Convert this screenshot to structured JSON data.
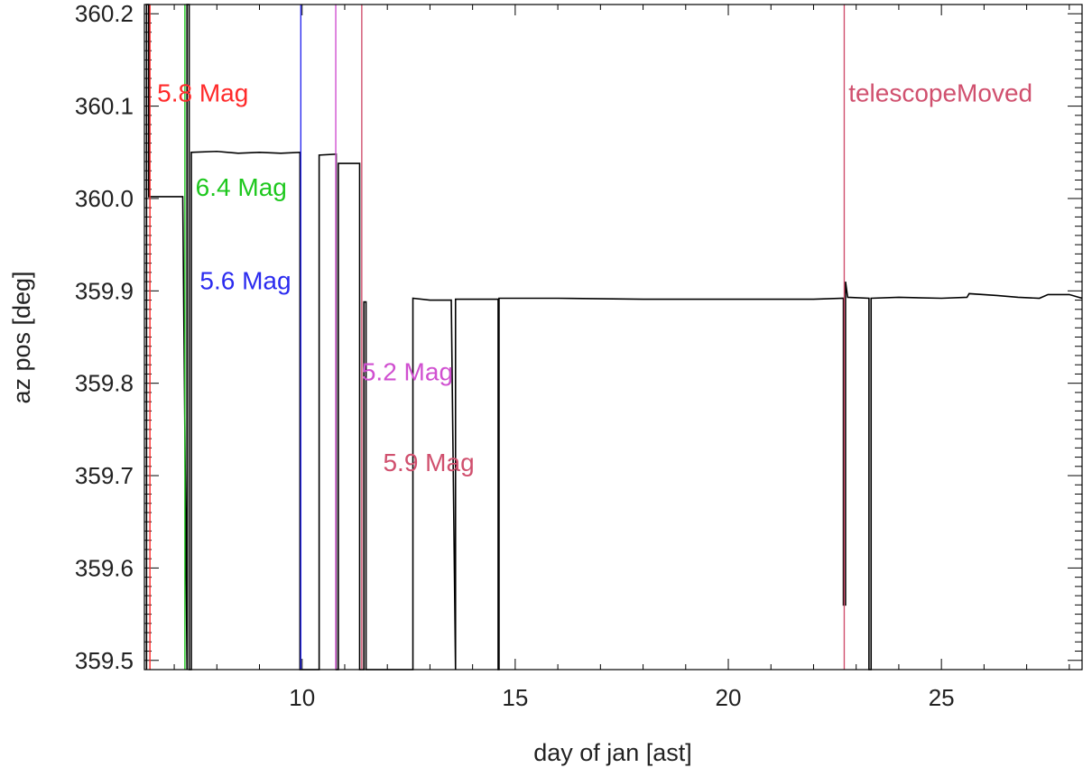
{
  "chart_data": {
    "type": "line",
    "title": "",
    "xlabel": "day of jan [ast]",
    "ylabel": "az pos [deg]",
    "xlim": [
      6.3,
      28.3
    ],
    "ylim": [
      359.49,
      360.21
    ],
    "xticks": [
      {
        "value": 10,
        "label": "10"
      },
      {
        "value": 15,
        "label": "15"
      },
      {
        "value": 20,
        "label": "20"
      },
      {
        "value": 25,
        "label": "25"
      }
    ],
    "yticks": [
      {
        "value": 359.5,
        "label": "359.5"
      },
      {
        "value": 359.6,
        "label": "359.6"
      },
      {
        "value": 359.7,
        "label": "359.7"
      },
      {
        "value": 359.8,
        "label": "359.8"
      },
      {
        "value": 359.9,
        "label": "359.9"
      },
      {
        "value": 360.0,
        "label": "360.0"
      },
      {
        "value": 360.1,
        "label": "360.1"
      },
      {
        "value": 360.2,
        "label": "360.2"
      }
    ],
    "grid": false,
    "series": [
      {
        "color": "#000000",
        "points": [
          [
            6.35,
            359.49
          ],
          [
            6.35,
            360.21
          ],
          [
            6.4,
            360.21
          ],
          [
            6.4,
            360.002
          ],
          [
            7.2,
            360.002
          ],
          [
            7.3,
            359.49
          ],
          [
            7.3,
            360.21
          ],
          [
            7.35,
            360.21
          ],
          [
            7.35,
            359.49
          ],
          [
            7.4,
            359.49
          ],
          [
            7.4,
            360.05
          ],
          [
            8.0,
            360.051
          ],
          [
            8.5,
            360.049
          ],
          [
            9.0,
            360.05
          ],
          [
            9.5,
            360.049
          ],
          [
            9.95,
            360.05
          ],
          [
            9.95,
            359.49
          ],
          [
            10.4,
            359.49
          ],
          [
            10.4,
            360.047
          ],
          [
            10.8,
            360.048
          ],
          [
            10.8,
            359.49
          ],
          [
            10.85,
            359.49
          ],
          [
            10.85,
            360.038
          ],
          [
            11.35,
            360.038
          ],
          [
            11.35,
            359.49
          ],
          [
            11.45,
            359.49
          ],
          [
            11.45,
            359.888
          ],
          [
            11.5,
            359.888
          ],
          [
            11.5,
            359.49
          ],
          [
            12.6,
            359.49
          ],
          [
            12.6,
            359.892
          ],
          [
            13.0,
            359.89
          ],
          [
            13.5,
            359.89
          ],
          [
            13.6,
            359.49
          ],
          [
            13.6,
            359.891
          ],
          [
            14.6,
            359.891
          ],
          [
            14.6,
            359.49
          ],
          [
            14.62,
            359.49
          ],
          [
            14.62,
            359.892
          ],
          [
            16.0,
            359.892
          ],
          [
            18.0,
            359.891
          ],
          [
            20.0,
            359.891
          ],
          [
            22.0,
            359.891
          ],
          [
            22.7,
            359.892
          ],
          [
            22.7,
            359.56
          ],
          [
            22.75,
            359.56
          ],
          [
            22.75,
            359.91
          ],
          [
            22.8,
            359.893
          ],
          [
            23.3,
            359.892
          ],
          [
            23.3,
            359.49
          ],
          [
            23.35,
            359.49
          ],
          [
            23.35,
            359.892
          ],
          [
            24.0,
            359.893
          ],
          [
            25.0,
            359.892
          ],
          [
            25.6,
            359.893
          ],
          [
            25.65,
            359.897
          ],
          [
            26.3,
            359.895
          ],
          [
            26.8,
            359.893
          ],
          [
            27.3,
            359.892
          ],
          [
            27.5,
            359.896
          ],
          [
            28.0,
            359.896
          ],
          [
            28.3,
            359.892
          ]
        ]
      }
    ],
    "markers": [
      {
        "x": 6.43,
        "color": "#ff2a2a",
        "label": "5.8 Mag",
        "label_x": 6.6,
        "label_y": 360.105
      },
      {
        "x": 7.25,
        "color": "#1ec81e",
        "label": "6.4 Mag",
        "label_x": 7.5,
        "label_y": 360.003
      },
      {
        "x": 9.97,
        "color": "#2b2bef",
        "label": "5.6 Mag",
        "label_x": 7.6,
        "label_y": 359.902
      },
      {
        "x": 10.79,
        "color": "#d050d0",
        "label": "5.2 Mag",
        "label_x": 11.4,
        "label_y": 359.803
      },
      {
        "x": 11.4,
        "color": "#d0506e",
        "label": "5.9 Mag",
        "label_x": 11.9,
        "label_y": 359.705
      },
      {
        "x": 22.72,
        "color": "#d0506e",
        "label": "telescopeMoved",
        "label_x": 22.82,
        "label_y": 360.105
      }
    ]
  }
}
